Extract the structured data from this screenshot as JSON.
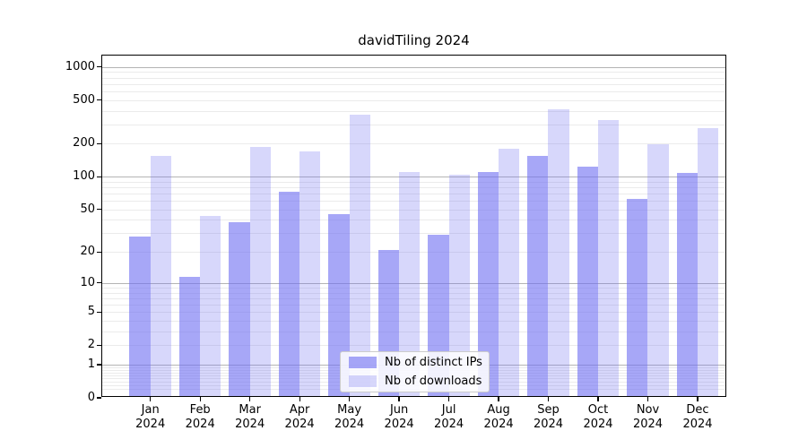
{
  "title": "davidTiling 2024",
  "legend": {
    "items": [
      {
        "label": "Nb of distinct IPs",
        "color": "rgba(113,113,242,0.62)",
        "color_hex": "#a7a7f7"
      },
      {
        "label": "Nb of downloads",
        "color": "rgba(113,113,242,0.28)",
        "color_hex": "#d7d7fb"
      }
    ]
  },
  "y_axis": {
    "tick_labels": [
      "1000",
      "500",
      "200",
      "100",
      "50",
      "20",
      "10",
      "5",
      "2",
      "1",
      "0"
    ],
    "tick_values": [
      1000,
      500,
      200,
      100,
      50,
      20,
      10,
      5,
      2,
      1,
      0
    ]
  },
  "x_axis": {
    "tick_labels": [
      "Jan 2024",
      "Feb 2024",
      "Mar 2024",
      "Apr 2024",
      "May 2024",
      "Jun 2024",
      "Jul 2024",
      "Aug 2024",
      "Sep 2024",
      "Oct 2024",
      "Nov 2024",
      "Dec 2024"
    ]
  },
  "chart_data": {
    "type": "bar",
    "title": "davidTiling 2024",
    "categories": [
      "Jan 2024",
      "Feb 2024",
      "Mar 2024",
      "Apr 2024",
      "May 2024",
      "Jun 2024",
      "Jul 2024",
      "Aug 2024",
      "Sep 2024",
      "Oct 2024",
      "Nov 2024",
      "Dec 2024"
    ],
    "series": [
      {
        "name": "Nb of distinct IPs",
        "values": [
          27,
          11,
          37,
          70,
          44,
          20,
          28,
          107,
          150,
          120,
          60,
          105
        ]
      },
      {
        "name": "Nb of downloads",
        "values": [
          150,
          42,
          180,
          165,
          355,
          107,
          100,
          175,
          400,
          315,
          190,
          270
        ]
      }
    ],
    "xlabel": "",
    "ylabel": "",
    "yscale": "log1p",
    "ylim": [
      0,
      1266
    ],
    "yticks": [
      0,
      1,
      2,
      5,
      10,
      20,
      50,
      100,
      200,
      500,
      1000
    ],
    "grid": "horizontal",
    "legend_position": "lower center"
  },
  "colors": {
    "grid_decade": "#b4b4b4",
    "grid_minor": "#ebebeb",
    "spine": "#000000",
    "background": "#ffffff"
  }
}
